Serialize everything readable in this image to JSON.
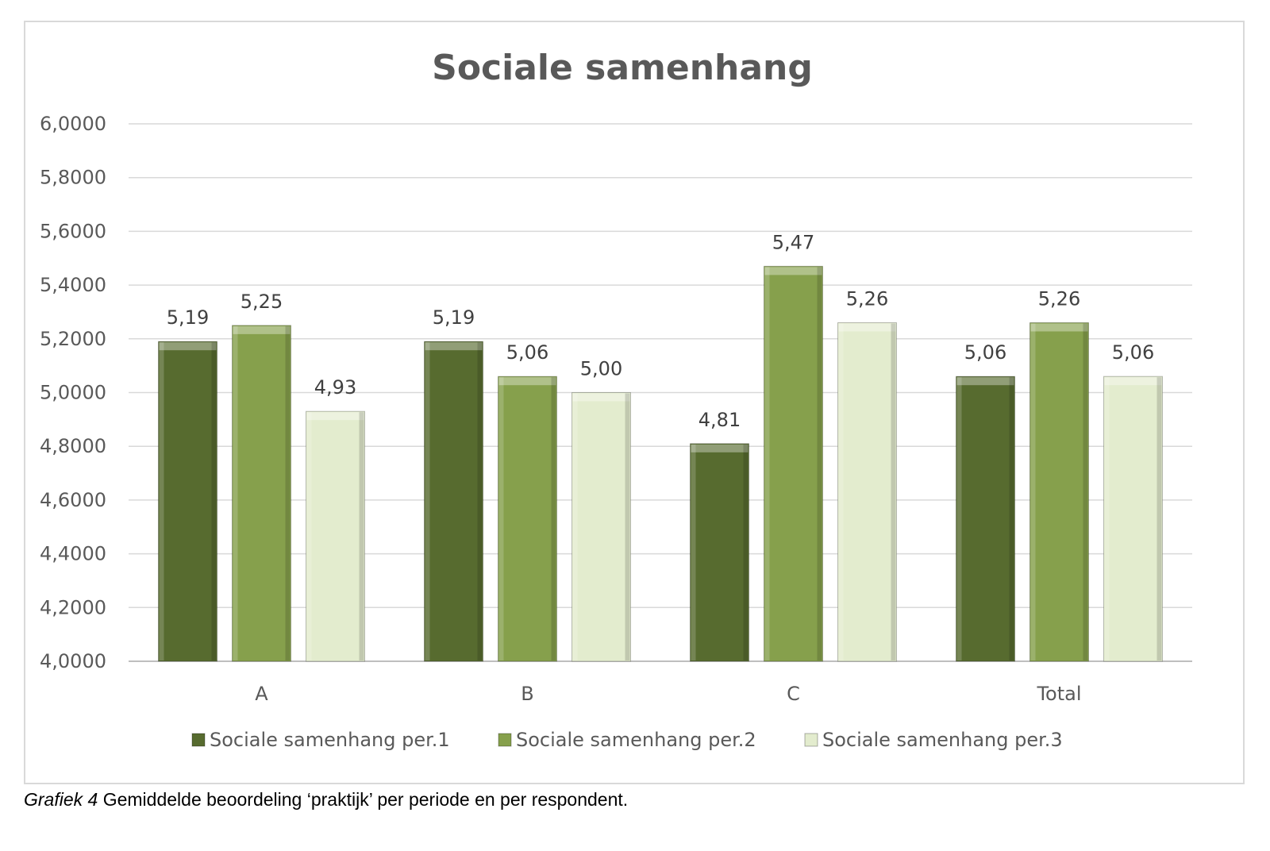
{
  "chart_data": {
    "type": "bar",
    "title": "Sociale samenhang",
    "categories": [
      "A",
      "B",
      "C",
      "Total"
    ],
    "series": [
      {
        "name": "Sociale samenhang per.1",
        "values": [
          5.19,
          5.19,
          4.81,
          5.06
        ],
        "labels": [
          "5,19",
          "5,19",
          "4,81",
          "5,06"
        ],
        "color": "#576b2f"
      },
      {
        "name": "Sociale samenhang per.2",
        "values": [
          5.25,
          5.06,
          5.47,
          5.26
        ],
        "labels": [
          "5,25",
          "5,06",
          "5,47",
          "5,26"
        ],
        "color": "#86a04c"
      },
      {
        "name": "Sociale samenhang per.3",
        "values": [
          4.93,
          5.0,
          5.26,
          5.06
        ],
        "labels": [
          "4,93",
          "5,00",
          "5,26",
          "5,06"
        ],
        "color": "#e3ecce"
      }
    ],
    "ylim": [
      4.0,
      6.0
    ],
    "yticks": [
      "4,0000",
      "4,2000",
      "4,4000",
      "4,6000",
      "4,8000",
      "5,0000",
      "5,2000",
      "5,4000",
      "5,6000",
      "5,8000",
      "6,0000"
    ],
    "grid": true,
    "legend": "bottom",
    "xlabel": "",
    "ylabel": ""
  },
  "caption": {
    "label": "Grafiek 4",
    "text": " Gemiddelde beoordeling ‘praktijk’ per periode en per respondent."
  }
}
